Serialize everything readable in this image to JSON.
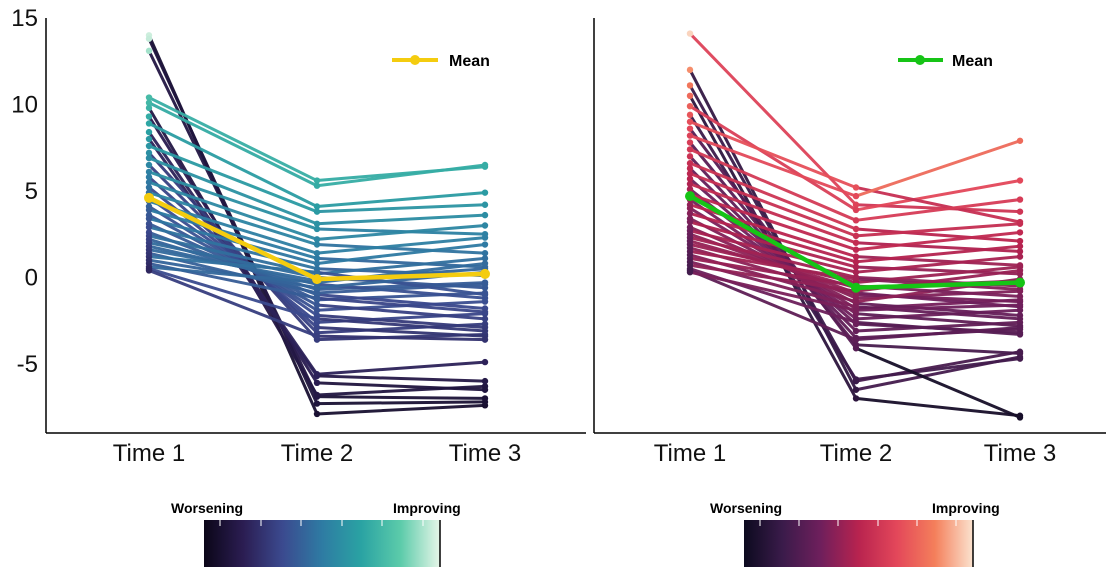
{
  "chart_data": [
    {
      "type": "line",
      "panel": "left",
      "x": [
        "Time 1",
        "Time 2",
        "Time 3"
      ],
      "y_ticks": [
        -5,
        0,
        5,
        10,
        15
      ],
      "ylim": [
        -9,
        15
      ],
      "palette": [
        "#0b0618",
        "#2b1d52",
        "#3b4a8f",
        "#2e7ba3",
        "#2aa3a3",
        "#5ccbaa",
        "#e6f6e8"
      ],
      "legend": {
        "label": "Mean",
        "color": "#f4cc0f",
        "position": "top-right"
      },
      "mean": [
        4.6,
        -0.1,
        0.2
      ],
      "colorbar": {
        "left_label": "Worsening",
        "right_label": "Improving"
      },
      "series": [
        {
          "values": [
            14.0,
            -7.9,
            -7.4
          ]
        },
        {
          "values": [
            13.8,
            -7.3,
            -7.2
          ]
        },
        {
          "values": [
            13.1,
            -6.9,
            -7.0
          ]
        },
        {
          "values": [
            10.4,
            5.6,
            6.4
          ]
        },
        {
          "values": [
            10.1,
            5.3,
            6.5
          ]
        },
        {
          "values": [
            9.8,
            -6.8,
            -6.3
          ]
        },
        {
          "values": [
            9.3,
            -6.1,
            -6.5
          ]
        },
        {
          "values": [
            8.9,
            4.1,
            4.9
          ]
        },
        {
          "values": [
            8.4,
            -5.6,
            -4.9
          ]
        },
        {
          "values": [
            8.0,
            -5.7,
            -6.0
          ]
        },
        {
          "values": [
            7.6,
            3.8,
            4.2
          ]
        },
        {
          "values": [
            7.2,
            -3.6,
            -3.3
          ]
        },
        {
          "values": [
            6.9,
            3.1,
            3.6
          ]
        },
        {
          "values": [
            6.5,
            -3.2,
            -2.7
          ]
        },
        {
          "values": [
            6.1,
            2.8,
            2.5
          ]
        },
        {
          "values": [
            5.8,
            -2.9,
            -3.4
          ]
        },
        {
          "values": [
            5.5,
            2.2,
            3.0
          ]
        },
        {
          "values": [
            5.2,
            -2.6,
            -2.1
          ]
        },
        {
          "values": [
            4.9,
            1.9,
            1.4
          ]
        },
        {
          "values": [
            4.6,
            -2.2,
            -2.9
          ]
        },
        {
          "values": [
            4.4,
            1.4,
            2.3
          ]
        },
        {
          "values": [
            4.1,
            -1.9,
            -1.4
          ]
        },
        {
          "values": [
            3.9,
            1.1,
            0.6
          ]
        },
        {
          "values": [
            3.6,
            -1.6,
            -2.4
          ]
        },
        {
          "values": [
            3.4,
            0.8,
            1.9
          ]
        },
        {
          "values": [
            3.1,
            -1.3,
            -0.9
          ]
        },
        {
          "values": [
            2.9,
            0.5,
            0.1
          ]
        },
        {
          "values": [
            2.6,
            -1.0,
            -1.8
          ]
        },
        {
          "values": [
            2.4,
            0.2,
            1.1
          ]
        },
        {
          "values": [
            2.2,
            -0.7,
            -0.3
          ]
        },
        {
          "values": [
            2.0,
            0.0,
            -0.6
          ]
        },
        {
          "values": [
            1.8,
            -0.4,
            -1.2
          ]
        },
        {
          "values": [
            1.6,
            -0.2,
            0.5
          ]
        },
        {
          "values": [
            1.4,
            -0.9,
            -0.4
          ]
        },
        {
          "values": [
            1.2,
            0.3,
            -1.0
          ]
        },
        {
          "values": [
            1.0,
            -0.6,
            0.3
          ]
        },
        {
          "values": [
            0.8,
            -1.2,
            -2.0
          ]
        },
        {
          "values": [
            0.6,
            -0.3,
            0.8
          ]
        },
        {
          "values": [
            0.5,
            -2.4,
            -3.1
          ]
        },
        {
          "values": [
            0.4,
            -3.4,
            -3.6
          ]
        }
      ]
    },
    {
      "type": "line",
      "panel": "right",
      "x": [
        "Time 1",
        "Time 2",
        "Time 3"
      ],
      "ylim": [
        -9,
        15
      ],
      "palette": [
        "#0c0a1f",
        "#3a1b4a",
        "#6e1f5c",
        "#b8234f",
        "#e3475a",
        "#f47f5b",
        "#fbe3cf"
      ],
      "legend": {
        "label": "Mean",
        "color": "#16c416",
        "position": "top-right"
      },
      "mean": [
        4.7,
        -0.6,
        -0.3
      ],
      "colorbar": {
        "left_label": "Worsening",
        "right_label": "Improving"
      },
      "series": [
        {
          "values": [
            14.1,
            4.2,
            3.8
          ]
        },
        {
          "values": [
            12.0,
            -6.5,
            -4.6
          ]
        },
        {
          "values": [
            11.1,
            -6.0,
            -4.3
          ]
        },
        {
          "values": [
            10.5,
            -7.0,
            -8.0
          ]
        },
        {
          "values": [
            9.9,
            3.9,
            5.6
          ]
        },
        {
          "values": [
            9.4,
            -5.9,
            -4.7
          ]
        },
        {
          "values": [
            9.0,
            5.2,
            3.2
          ]
        },
        {
          "values": [
            8.6,
            -4.1,
            -8.1
          ]
        },
        {
          "values": [
            8.2,
            4.7,
            7.9
          ]
        },
        {
          "values": [
            7.8,
            -3.9,
            -4.4
          ]
        },
        {
          "values": [
            7.4,
            3.3,
            4.5
          ]
        },
        {
          "values": [
            7.0,
            -3.5,
            -3.0
          ]
        },
        {
          "values": [
            6.6,
            2.8,
            2.1
          ]
        },
        {
          "values": [
            6.3,
            -3.1,
            -2.6
          ]
        },
        {
          "values": [
            6.0,
            2.4,
            3.1
          ]
        },
        {
          "values": [
            5.7,
            -2.7,
            -3.2
          ]
        },
        {
          "values": [
            5.4,
            2.0,
            1.5
          ]
        },
        {
          "values": [
            5.1,
            -2.4,
            -1.9
          ]
        },
        {
          "values": [
            4.8,
            1.6,
            2.6
          ]
        },
        {
          "values": [
            4.5,
            -2.1,
            -2.8
          ]
        },
        {
          "values": [
            4.2,
            1.2,
            0.7
          ]
        },
        {
          "values": [
            4.0,
            -1.8,
            -1.3
          ]
        },
        {
          "values": [
            3.7,
            0.9,
            1.8
          ]
        },
        {
          "values": [
            3.4,
            -1.5,
            -2.2
          ]
        },
        {
          "values": [
            3.2,
            0.6,
            0.2
          ]
        },
        {
          "values": [
            2.9,
            -1.2,
            -0.8
          ]
        },
        {
          "values": [
            2.7,
            0.3,
            1.2
          ]
        },
        {
          "values": [
            2.5,
            -0.9,
            -1.7
          ]
        },
        {
          "values": [
            2.3,
            0.0,
            -0.5
          ]
        },
        {
          "values": [
            2.1,
            -0.6,
            -0.2
          ]
        },
        {
          "values": [
            1.9,
            -0.3,
            0.6
          ]
        },
        {
          "values": [
            1.7,
            -1.0,
            -1.4
          ]
        },
        {
          "values": [
            1.5,
            -0.1,
            -0.7
          ]
        },
        {
          "values": [
            1.3,
            -1.4,
            -0.1
          ]
        },
        {
          "values": [
            1.1,
            -0.5,
            -1.1
          ]
        },
        {
          "values": [
            0.9,
            -1.7,
            -2.4
          ]
        },
        {
          "values": [
            0.7,
            -0.8,
            0.4
          ]
        },
        {
          "values": [
            0.5,
            -2.6,
            -3.3
          ]
        },
        {
          "values": [
            0.4,
            -3.6,
            -2.9
          ]
        },
        {
          "values": [
            0.3,
            -1.9,
            -1.6
          ]
        }
      ]
    }
  ]
}
